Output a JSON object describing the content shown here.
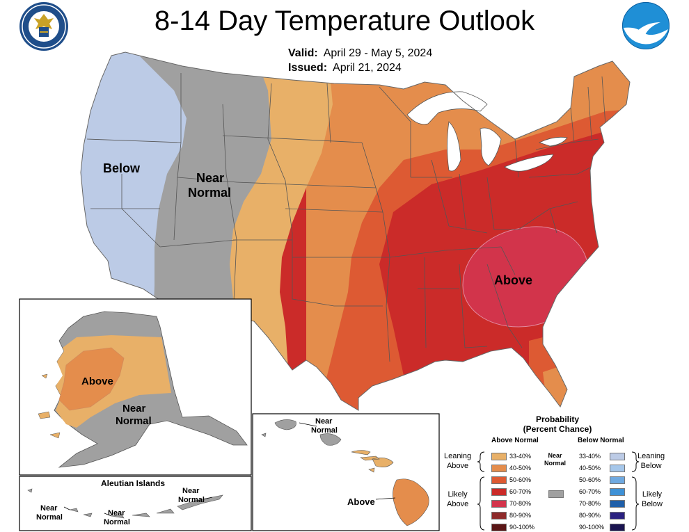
{
  "header": {
    "title": "8-14 Day Temperature Outlook",
    "valid_label": "Valid:",
    "valid_value": "April 29 - May 5, 2024",
    "issued_label": "Issued:",
    "issued_value": "April 21, 2024",
    "left_logo_icon": "department-of-commerce-seal",
    "right_logo_icon": "noaa-logo"
  },
  "colors": {
    "below_33_40": "#bccbe6",
    "near_normal": "#a0a0a0",
    "above_33_40": "#e8b068",
    "above_40_50": "#e48d4c",
    "above_50_60": "#dd5a33",
    "above_60_70": "#cb2b29",
    "above_70_80": "#d2344b",
    "state_line": "#555555",
    "water": "#ffffff"
  },
  "map_labels": {
    "conus_below": "Below",
    "conus_near_1": "Near",
    "conus_near_2": "Normal",
    "conus_above": "Above",
    "alaska_above": "Above",
    "alaska_near_1": "Near",
    "alaska_near_2": "Normal",
    "aleutian_title": "Aleutian Islands",
    "aleutian_near_a_1": "Near",
    "aleutian_near_a_2": "Normal",
    "aleutian_near_b_1": "Near",
    "aleutian_near_b_2": "Normal",
    "aleutian_near_c_1": "Near",
    "aleutian_near_c_2": "Normal",
    "hawaii_near_1": "Near",
    "hawaii_near_2": "Normal",
    "hawaii_above": "Above"
  },
  "legend": {
    "title_1": "Probability",
    "title_2": "(Percent Chance)",
    "above_header": "Above Normal",
    "below_header": "Below Normal",
    "near_label_1": "Near",
    "near_label_2": "Normal",
    "leaning_above_1": "Leaning",
    "leaning_above_2": "Above",
    "likely_above_1": "Likely",
    "likely_above_2": "Above",
    "leaning_below_1": "Leaning",
    "leaning_below_2": "Below",
    "likely_below_1": "Likely",
    "likely_below_2": "Below",
    "above_items": [
      {
        "label": "33-40%",
        "color": "#e8b068"
      },
      {
        "label": "40-50%",
        "color": "#e48d4c"
      },
      {
        "label": "50-60%",
        "color": "#dd5a33"
      },
      {
        "label": "60-70%",
        "color": "#cb2b29"
      },
      {
        "label": "70-80%",
        "color": "#d2344b"
      },
      {
        "label": "80-90%",
        "color": "#8e2a2a"
      },
      {
        "label": "90-100%",
        "color": "#5a1616"
      }
    ],
    "below_items": [
      {
        "label": "33-40%",
        "color": "#bccbe6"
      },
      {
        "label": "40-50%",
        "color": "#a6c7ea"
      },
      {
        "label": "50-60%",
        "color": "#6fa9e0"
      },
      {
        "label": "60-70%",
        "color": "#3e91d6"
      },
      {
        "label": "70-80%",
        "color": "#1f5fa9"
      },
      {
        "label": "80-90%",
        "color": "#2b2180"
      },
      {
        "label": "90-100%",
        "color": "#1a1450"
      }
    ],
    "near_color": "#a0a0a0"
  }
}
